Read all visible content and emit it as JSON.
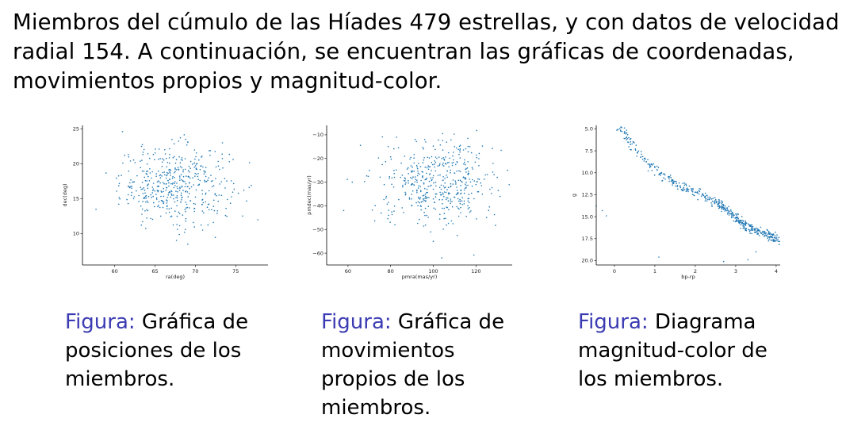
{
  "intro_text": "Miembros del cúmulo de las Híades 479 estrellas, y con datos de velocidad radial 154. A continuación, se encuentran las gráficas de coordenadas, movimientos propios y magnitud-color.",
  "captions": [
    {
      "prefix": "Figura:",
      "text": " Gráfica de posiciones de los miembros."
    },
    {
      "prefix": "Figura:",
      "text": " Gráfica de movimientos propios de los miembros."
    },
    {
      "prefix": "Figura:",
      "text": " Diagrama magnitud-color de los miembros."
    }
  ],
  "colors": {
    "points": "#1f77b4",
    "figure_label": "#3b3bb3"
  },
  "chart_data": [
    {
      "type": "scatter",
      "title": "",
      "xlabel": "ra(deg)",
      "ylabel": "dec(deg)",
      "xlim": [
        56,
        79
      ],
      "ylim": [
        5.5,
        25.5
      ],
      "xticks": [
        60,
        65,
        70,
        75
      ],
      "yticks": [
        10,
        15,
        20,
        25
      ],
      "y_inverted": false,
      "grid": false,
      "n_points": 479,
      "cloud": {
        "x_center": 67.5,
        "y_center": 17.0,
        "x_spread": 5.5,
        "y_spread": 4.5
      },
      "points": [
        [
          60.5,
          14.2
        ],
        [
          62.1,
          16.8
        ],
        [
          64.0,
          18.5
        ],
        [
          65.2,
          15.1
        ],
        [
          66.0,
          17.3
        ],
        [
          66.8,
          16.0
        ],
        [
          67.5,
          18.9
        ],
        [
          68.2,
          14.5
        ],
        [
          69.0,
          16.7
        ],
        [
          70.1,
          19.2
        ],
        [
          71.3,
          15.8
        ],
        [
          72.5,
          17.9
        ],
        [
          73.8,
          13.6
        ],
        [
          65.5,
          22.1
        ],
        [
          68.8,
          23.5
        ],
        [
          63.3,
          11.2
        ],
        [
          70.9,
          10.5
        ],
        [
          74.2,
          20.3
        ],
        [
          61.0,
          20.1
        ],
        [
          76.0,
          16.2
        ]
      ]
    },
    {
      "type": "scatter",
      "title": "",
      "xlabel": "pmra(mas/yr)",
      "ylabel": "pmdec(mas/yr)",
      "xlim": [
        50,
        137
      ],
      "ylim": [
        -65,
        -6
      ],
      "xticks": [
        60,
        80,
        100,
        120
      ],
      "yticks": [
        -10,
        -20,
        -30,
        -40,
        -50,
        -60
      ],
      "y_inverted": false,
      "grid": false,
      "n_points": 479,
      "cloud": {
        "x_center": 102,
        "y_center": -30,
        "x_spread": 22,
        "y_spread": 14
      },
      "points": [
        [
          62,
          -30
        ],
        [
          70,
          -25
        ],
        [
          78,
          -36
        ],
        [
          85,
          -22
        ],
        [
          90,
          -40
        ],
        [
          95,
          -28
        ],
        [
          100,
          -33
        ],
        [
          104,
          -20
        ],
        [
          108,
          -26
        ],
        [
          112,
          -38
        ],
        [
          116,
          -24
        ],
        [
          120,
          -31
        ],
        [
          125,
          -45
        ],
        [
          100,
          -55
        ],
        [
          96,
          -12
        ],
        [
          82,
          -48
        ],
        [
          110,
          -15
        ],
        [
          130,
          -28
        ],
        [
          58,
          -42
        ],
        [
          104,
          -62
        ]
      ]
    },
    {
      "type": "scatter",
      "title": "",
      "xlabel": "bp-rp",
      "ylabel": "g",
      "xlim": [
        -0.45,
        4.1
      ],
      "ylim": [
        20.5,
        4.6
      ],
      "xticks": [
        0,
        1,
        2,
        3,
        4
      ],
      "yticks": [
        5.0,
        7.5,
        10.0,
        12.5,
        15.0,
        17.5,
        20.0
      ],
      "ytick_labels": [
        "5.0",
        "7.5",
        "10.0",
        "12.5",
        "15.0",
        "17.5",
        "20.0"
      ],
      "y_inverted": true,
      "grid": false,
      "n_points": 479,
      "main_sequence": [
        [
          0.05,
          4.8
        ],
        [
          0.3,
          5.8
        ],
        [
          0.5,
          7.2
        ],
        [
          0.8,
          8.8
        ],
        [
          1.2,
          10.4
        ],
        [
          1.7,
          11.6
        ],
        [
          2.2,
          12.6
        ],
        [
          2.6,
          13.6
        ],
        [
          2.9,
          14.8
        ],
        [
          3.2,
          15.9
        ],
        [
          3.5,
          16.6
        ],
        [
          3.8,
          17.1
        ],
        [
          4.05,
          17.7
        ]
      ],
      "points": [
        [
          -0.45,
          13.8
        ],
        [
          -0.3,
          14.3
        ],
        [
          -0.2,
          14.9
        ],
        [
          1.1,
          19.6
        ],
        [
          2.7,
          20.1
        ],
        [
          3.3,
          19.9
        ],
        [
          3.5,
          19.0
        ],
        [
          3.9,
          17.0
        ]
      ]
    }
  ]
}
